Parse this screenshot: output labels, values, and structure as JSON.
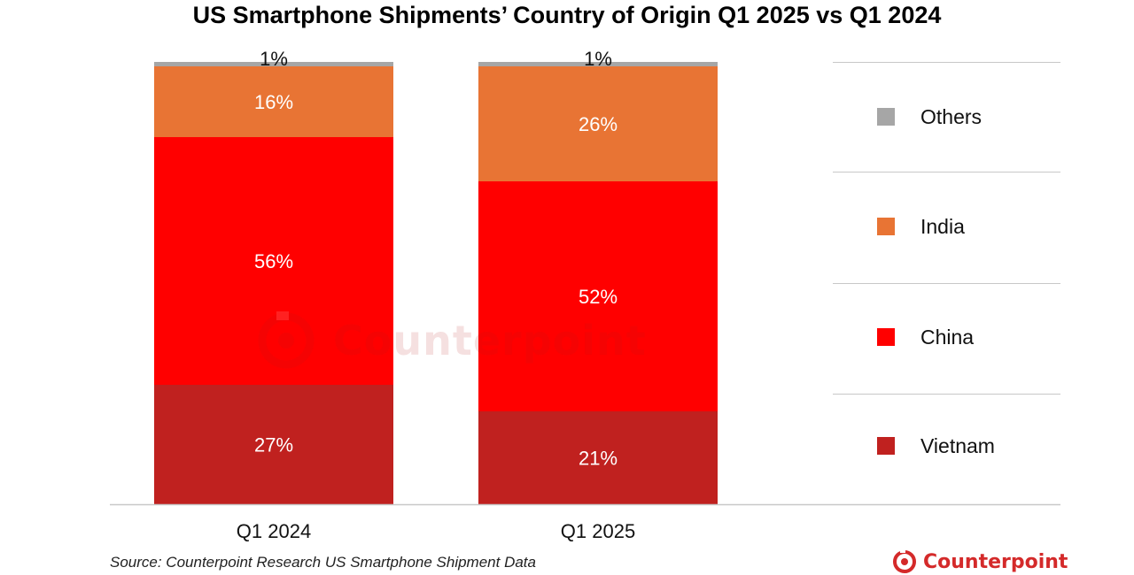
{
  "chart_data": {
    "type": "bar",
    "stacked": true,
    "title": "US Smartphone Shipments’ Country of Origin Q1 2025 vs Q1 2024",
    "categories": [
      "Q1 2024",
      "Q1 2025"
    ],
    "series": [
      {
        "name": "Vietnam",
        "values": [
          27,
          21
        ],
        "labels": [
          "27%",
          "21%"
        ],
        "color": "#c0211f"
      },
      {
        "name": "China",
        "values": [
          56,
          52
        ],
        "labels": [
          "56%",
          "52%"
        ],
        "color": "#ff0000"
      },
      {
        "name": "India",
        "values": [
          16,
          26
        ],
        "labels": [
          "16%",
          "26%"
        ],
        "color": "#e87434"
      },
      {
        "name": "Others",
        "values": [
          1,
          1
        ],
        "labels": [
          "1%",
          "1%"
        ],
        "color": "#a6a6a6"
      }
    ],
    "legend": [
      "Others",
      "India",
      "China",
      "Vietnam"
    ],
    "legend_position": "right",
    "grid": false,
    "source": "Source: Counterpoint Research US Smartphone Shipment Data",
    "watermark": "Counterpoint",
    "brand": "Counterpoint"
  }
}
